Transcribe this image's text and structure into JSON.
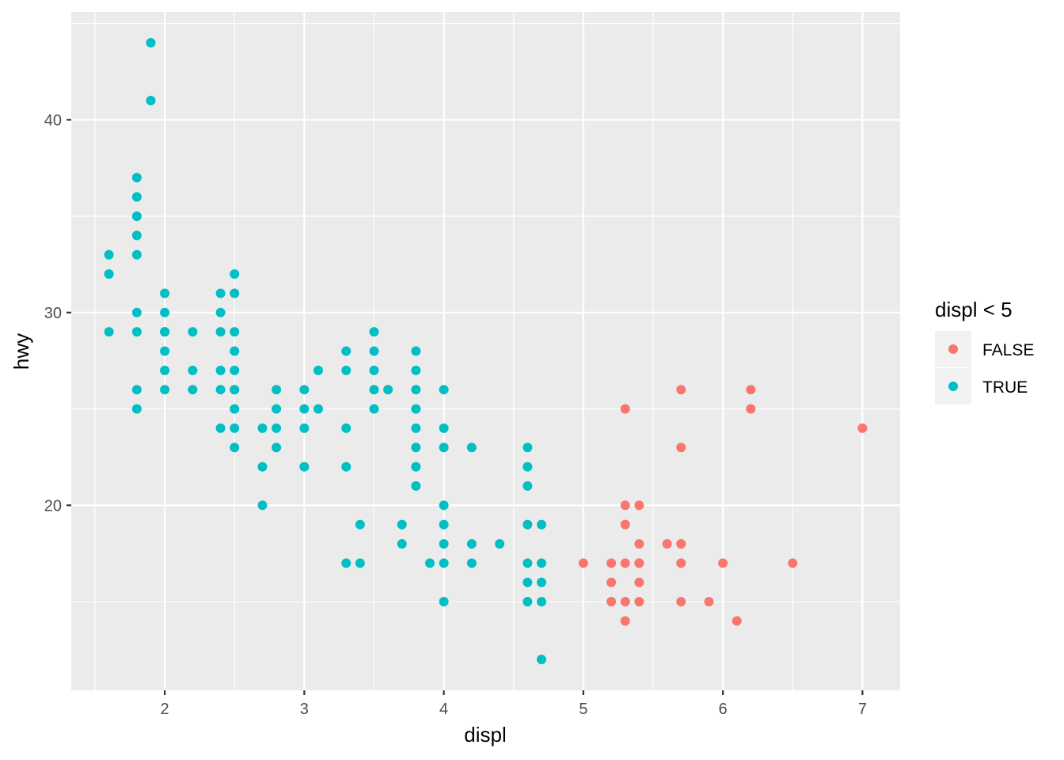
{
  "chart_data": {
    "type": "scatter",
    "xlabel": "displ",
    "ylabel": "hwy",
    "xlim": [
      1.33,
      7.27
    ],
    "ylim": [
      10.4,
      45.6
    ],
    "x_ticks": [
      2,
      3,
      4,
      5,
      6,
      7
    ],
    "x_tick_labels": [
      "2",
      "3",
      "4",
      "5",
      "6",
      "7"
    ],
    "y_ticks": [
      20,
      30,
      40
    ],
    "y_tick_labels": [
      "20",
      "30",
      "40"
    ],
    "grid": true,
    "legend": {
      "title": "displ < 5",
      "position": "right",
      "entries": [
        {
          "label": "FALSE",
          "color": "#F8766D"
        },
        {
          "label": "TRUE",
          "color": "#00BFC4"
        }
      ]
    },
    "series": [
      {
        "name": "FALSE",
        "color": "#F8766D",
        "x": [
          5.0,
          5.2,
          5.2,
          5.2,
          5.3,
          5.3,
          5.3,
          5.3,
          5.3,
          5.3,
          5.4,
          5.4,
          5.4,
          5.4,
          5.4,
          5.4,
          5.6,
          5.7,
          5.7,
          5.7,
          5.7,
          5.7,
          5.7,
          5.9,
          6.0,
          6.1,
          6.2,
          6.2,
          6.5,
          7.0
        ],
        "y": [
          17,
          17,
          16,
          15,
          25,
          20,
          19,
          17,
          15,
          14,
          20,
          18,
          17,
          16,
          15,
          17,
          18,
          26,
          23,
          18,
          17,
          15,
          18,
          15,
          17,
          14,
          26,
          25,
          17,
          24
        ]
      },
      {
        "name": "TRUE",
        "color": "#00BFC4",
        "x": [
          1.6,
          1.6,
          1.6,
          1.8,
          1.8,
          1.8,
          1.8,
          1.8,
          1.8,
          1.8,
          1.8,
          1.8,
          1.9,
          1.9,
          2.0,
          2.0,
          2.0,
          2.0,
          2.0,
          2.0,
          2.0,
          2.2,
          2.2,
          2.2,
          2.4,
          2.4,
          2.4,
          2.4,
          2.4,
          2.4,
          2.5,
          2.5,
          2.5,
          2.5,
          2.5,
          2.5,
          2.5,
          2.5,
          2.5,
          2.5,
          2.7,
          2.7,
          2.7,
          2.8,
          2.8,
          2.8,
          2.8,
          3.0,
          3.0,
          3.0,
          3.0,
          3.1,
          3.1,
          3.3,
          3.3,
          3.3,
          3.3,
          3.3,
          3.4,
          3.4,
          3.5,
          3.5,
          3.5,
          3.5,
          3.5,
          3.6,
          3.7,
          3.7,
          3.8,
          3.8,
          3.8,
          3.8,
          3.8,
          3.8,
          3.8,
          3.8,
          3.9,
          4.0,
          4.0,
          4.0,
          4.0,
          4.0,
          4.0,
          4.0,
          4.0,
          4.2,
          4.2,
          4.2,
          4.4,
          4.6,
          4.6,
          4.6,
          4.6,
          4.6,
          4.6,
          4.6,
          4.7,
          4.7,
          4.7,
          4.7,
          4.7
        ],
        "y": [
          33,
          32,
          29,
          37,
          36,
          35,
          34,
          33,
          30,
          29,
          26,
          25,
          44,
          41,
          31,
          30,
          29,
          28,
          27,
          26,
          29,
          29,
          27,
          26,
          31,
          30,
          29,
          27,
          26,
          24,
          32,
          31,
          29,
          28,
          27,
          26,
          25,
          24,
          23,
          26,
          24,
          22,
          20,
          26,
          25,
          24,
          23,
          26,
          25,
          24,
          22,
          27,
          25,
          28,
          27,
          24,
          22,
          17,
          19,
          17,
          29,
          28,
          27,
          26,
          25,
          26,
          19,
          18,
          28,
          27,
          26,
          25,
          23,
          22,
          21,
          24,
          17,
          26,
          24,
          23,
          20,
          19,
          18,
          17,
          15,
          23,
          18,
          17,
          18,
          23,
          22,
          21,
          19,
          17,
          16,
          15,
          19,
          17,
          16,
          15,
          12
        ]
      }
    ]
  }
}
